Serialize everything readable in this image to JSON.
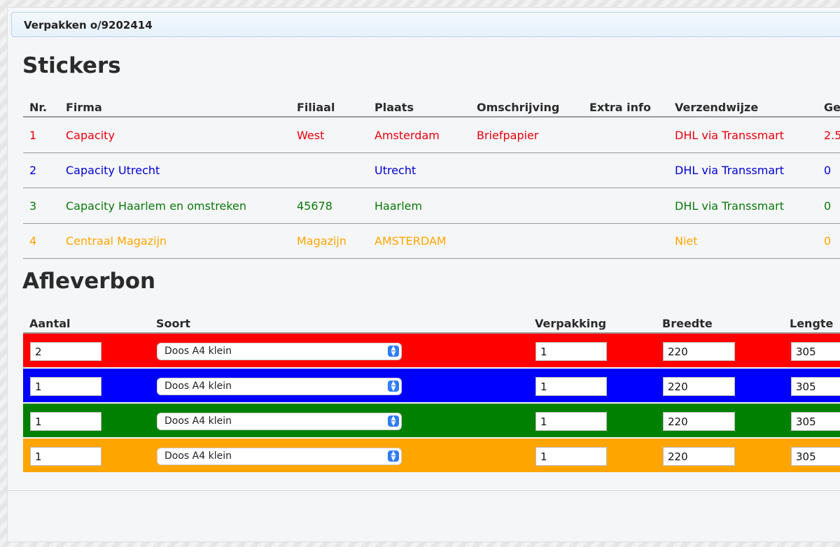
{
  "panel": {
    "title": "Verpakken o/9202414"
  },
  "stickers": {
    "heading": "Stickers",
    "columns": [
      "Nr.",
      "Firma",
      "Filiaal",
      "Plaats",
      "Omschrijving",
      "Extra info",
      "Verzendwijze",
      "Gew"
    ],
    "rows": [
      {
        "nr": "1",
        "firma": "Capacity",
        "filiaal": "West",
        "plaats": "Amsterdam",
        "omschrijving": "Briefpapier",
        "extra": "",
        "verzendwijze": "DHL via Transsmart",
        "gewicht": "2.5",
        "color": "#e8000b"
      },
      {
        "nr": "2",
        "firma": "Capacity Utrecht",
        "filiaal": "",
        "plaats": "Utrecht",
        "omschrijving": "",
        "extra": "",
        "verzendwijze": "DHL via Transsmart",
        "gewicht": "0",
        "color": "#0000d4"
      },
      {
        "nr": "3",
        "firma": "Capacity Haarlem en omstreken",
        "filiaal": "45678",
        "plaats": "Haarlem",
        "omschrijving": "",
        "extra": "",
        "verzendwijze": "DHL via Transsmart",
        "gewicht": "0",
        "color": "#0a7a0a"
      },
      {
        "nr": "4",
        "firma": "Centraal Magazijn",
        "filiaal": "Magazijn",
        "plaats": "AMSTERDAM",
        "omschrijving": "",
        "extra": "",
        "verzendwijze": "Niet",
        "gewicht": "0",
        "color": "#ffa500"
      }
    ]
  },
  "afleverbon": {
    "heading": "Afleverbon",
    "columns": [
      "Aantal",
      "Soort",
      "Verpakking",
      "Breedte",
      "Lengte"
    ],
    "rows": [
      {
        "aantal": "2",
        "soort": "Doos A4 klein",
        "verpakking": "1",
        "breedte": "220",
        "lengte": "305",
        "color": "#ff0000"
      },
      {
        "aantal": "1",
        "soort": "Doos A4 klein",
        "verpakking": "1",
        "breedte": "220",
        "lengte": "305",
        "color": "#0000ff"
      },
      {
        "aantal": "1",
        "soort": "Doos A4 klein",
        "verpakking": "1",
        "breedte": "220",
        "lengte": "305",
        "color": "#008000"
      },
      {
        "aantal": "1",
        "soort": "Doos A4 klein",
        "verpakking": "1",
        "breedte": "220",
        "lengte": "305",
        "color": "#ffa500"
      }
    ]
  },
  "icons": {
    "select_arrow": "chevron-up-down-icon"
  }
}
